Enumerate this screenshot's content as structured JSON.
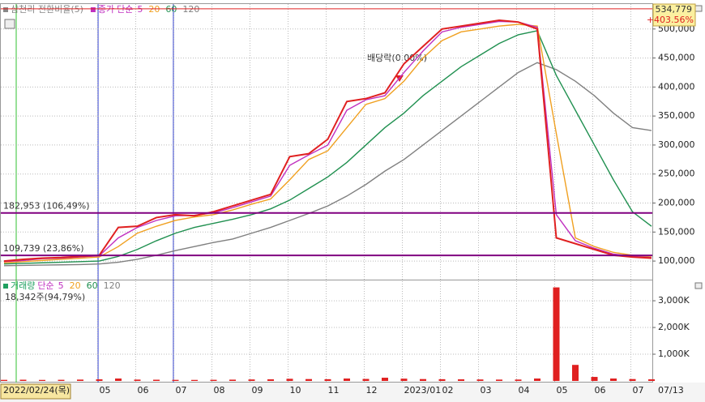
{
  "chart_data": [
    {
      "type": "line",
      "legend_title": "삼천리 전환비율(5)",
      "ma_label": "단순",
      "categories": [
        "2022/02/24(목)",
        null,
        null,
        null,
        null,
        "05",
        null,
        "06",
        null,
        "07",
        null,
        "08",
        null,
        "09",
        null,
        "10",
        null,
        "11",
        null,
        "12",
        null,
        "2023/01",
        null,
        "02",
        null,
        "03",
        null,
        "04",
        null,
        "05",
        null,
        "06",
        null,
        "07",
        "07/13"
      ],
      "series": [
        {
          "name": "종가",
          "color": "#e02020",
          "values": [
            100000,
            103000,
            105000,
            106000,
            108000,
            110000,
            158000,
            160000,
            175000,
            180000,
            178000,
            185000,
            195000,
            205000,
            215000,
            280000,
            285000,
            310000,
            375000,
            380000,
            390000,
            440000,
            470000,
            500000,
            505000,
            510000,
            515000,
            512000,
            500000,
            140000,
            130000,
            120000,
            110000,
            107000,
            105000
          ]
        },
        {
          "name": "5",
          "color": "#c030c0",
          "values": [
            99000,
            101000,
            104000,
            105000,
            107000,
            109000,
            140000,
            158000,
            170000,
            178000,
            179000,
            183000,
            192000,
            202000,
            212000,
            265000,
            283000,
            300000,
            360000,
            378000,
            385000,
            425000,
            462000,
            495000,
            503000,
            508000,
            513000,
            512000,
            503000,
            180000,
            135000,
            122000,
            112000,
            108000,
            106000
          ]
        },
        {
          "name": "20",
          "color": "#f0a020",
          "values": [
            97000,
            99000,
            101000,
            103000,
            105000,
            107000,
            125000,
            148000,
            160000,
            170000,
            176000,
            180000,
            188000,
            198000,
            207000,
            240000,
            275000,
            290000,
            330000,
            370000,
            380000,
            410000,
            450000,
            480000,
            495000,
            500000,
            505000,
            508000,
            505000,
            320000,
            140000,
            125000,
            115000,
            110000,
            107000
          ]
        },
        {
          "name": "60",
          "color": "#209050",
          "values": [
            95000,
            96000,
            97000,
            98000,
            99000,
            100000,
            108000,
            120000,
            135000,
            148000,
            158000,
            165000,
            172000,
            180000,
            190000,
            205000,
            225000,
            245000,
            270000,
            300000,
            330000,
            355000,
            385000,
            410000,
            435000,
            455000,
            475000,
            490000,
            497000,
            420000,
            360000,
            300000,
            240000,
            185000,
            160000
          ]
        },
        {
          "name": "120",
          "color": "#808080",
          "values": [
            92000,
            92500,
            93000,
            93500,
            94000,
            95000,
            98000,
            103000,
            110000,
            118000,
            125000,
            132000,
            138000,
            148000,
            158000,
            170000,
            182000,
            195000,
            212000,
            232000,
            255000,
            275000,
            300000,
            325000,
            350000,
            375000,
            400000,
            425000,
            442000,
            430000,
            410000,
            385000,
            355000,
            330000,
            325000
          ]
        }
      ],
      "ylim": [
        68000,
        543000
      ],
      "yticks": [
        {
          "value": 100000,
          "label": "100,000"
        },
        {
          "value": 150000,
          "label": "150,000"
        },
        {
          "value": 200000,
          "label": "200,000"
        },
        {
          "value": 250000,
          "label": "250,000"
        },
        {
          "value": 300000,
          "label": "300,000"
        },
        {
          "value": 350000,
          "label": "350,000"
        },
        {
          "value": 400000,
          "label": "400,000"
        },
        {
          "value": 450000,
          "label": "450,000"
        },
        {
          "value": 500000,
          "label": "500,000"
        }
      ],
      "hlines": [
        {
          "value": 182953,
          "label": "182,953 (106,49%)"
        },
        {
          "value": 109739,
          "label": "109,739 (23,86%)"
        }
      ],
      "top_marker": {
        "value": 534779,
        "label": "534,779",
        "change": "+403.56%"
      },
      "annotation": "배당락(0.00%)"
    },
    {
      "type": "bar",
      "name": "거래량",
      "ma_label": "단순",
      "ma_names": [
        "5",
        "20",
        "60",
        "120"
      ],
      "info": "18,342주(94,79%)",
      "color": "#e02020",
      "values": [
        40000,
        45000,
        38000,
        42000,
        50000,
        60000,
        90000,
        50000,
        45000,
        40000,
        38000,
        42000,
        48000,
        55000,
        60000,
        80000,
        70000,
        65000,
        90000,
        75000,
        120000,
        85000,
        70000,
        65000,
        60000,
        55000,
        50000,
        52000,
        90000,
        3500000,
        600000,
        150000,
        90000,
        70000,
        60000
      ],
      "ylim": [
        0,
        3730000
      ],
      "yticks": [
        {
          "value": 1000000,
          "label": "1,000K"
        },
        {
          "value": 2000000,
          "label": "2,000K"
        },
        {
          "value": 3000000,
          "label": "3,000K"
        }
      ]
    }
  ]
}
